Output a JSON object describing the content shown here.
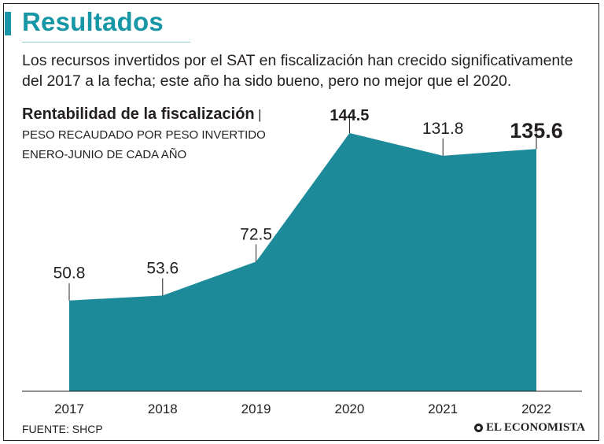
{
  "header": {
    "title": "Resultados",
    "subtitle": "Los recursos invertidos por el SAT en fiscalización han crecido significativamente del 2017 a la fecha; este año ha sido bueno, pero no mejor que el 2020."
  },
  "chart_data": {
    "type": "area",
    "title": "Rentabilidad de la fiscalización",
    "separator": "|",
    "subtitle": "Peso recaudado por peso invertido enero-junio de cada año",
    "categories": [
      "2017",
      "2018",
      "2019",
      "2020",
      "2021",
      "2022"
    ],
    "values": [
      50.8,
      53.6,
      72.5,
      144.5,
      131.8,
      135.6
    ],
    "value_labels": [
      "50.8",
      "53.6",
      "72.5",
      "144.5",
      "131.8",
      "135.6"
    ],
    "highlighted": [
      "2020",
      "2022"
    ],
    "ylim": [
      0,
      144.5
    ],
    "xlabel": "",
    "ylabel": "",
    "grid": false,
    "colors": {
      "fill": "#1C8A99",
      "text": "#231F20",
      "accent": "#1797A6"
    }
  },
  "footer": {
    "source": "FUENTE: SHCP",
    "publisher": "EL ECONOMISTA",
    "publisher_icon": "economista-logo-icon"
  }
}
